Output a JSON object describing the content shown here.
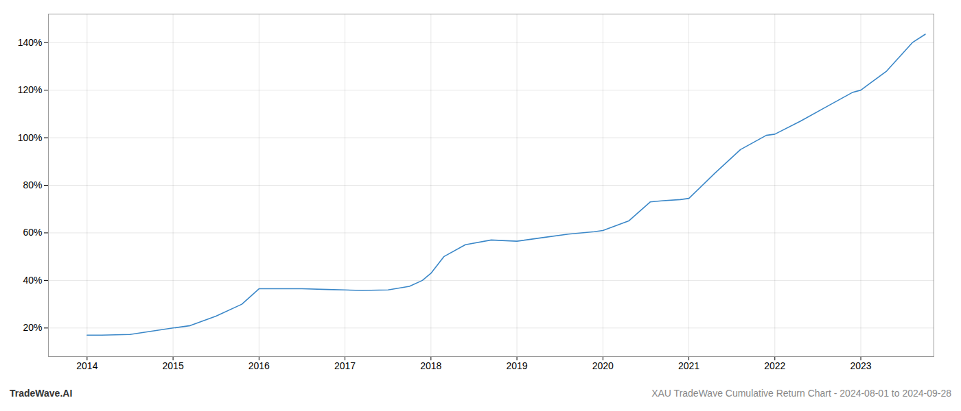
{
  "chart_data": {
    "type": "line",
    "x": [
      2014.0,
      2014.17,
      2014.5,
      2015.0,
      2015.2,
      2015.5,
      2015.8,
      2016.0,
      2016.3,
      2016.5,
      2016.8,
      2017.0,
      2017.2,
      2017.5,
      2017.75,
      2017.9,
      2018.0,
      2018.15,
      2018.4,
      2018.7,
      2019.0,
      2019.3,
      2019.6,
      2019.9,
      2020.0,
      2020.3,
      2020.55,
      2020.7,
      2020.9,
      2021.0,
      2021.3,
      2021.6,
      2021.9,
      2022.0,
      2022.3,
      2022.6,
      2022.9,
      2023.0,
      2023.3,
      2023.6,
      2023.75
    ],
    "values": [
      17.0,
      17.0,
      17.3,
      20.0,
      21.0,
      25.0,
      30.0,
      36.5,
      36.5,
      36.5,
      36.2,
      36.0,
      35.8,
      36.0,
      37.5,
      40.0,
      43.0,
      50.0,
      55.0,
      57.0,
      56.5,
      58.0,
      59.5,
      60.5,
      61.0,
      65.0,
      73.0,
      73.5,
      74.0,
      74.5,
      85.0,
      95.0,
      101.0,
      101.5,
      107.0,
      113.0,
      119.0,
      120.0,
      128.0,
      140.0,
      143.5
    ],
    "color": "#3a87c8",
    "xlim": [
      2013.55,
      2023.85
    ],
    "ylim": [
      8,
      152
    ],
    "xticks": [
      2014,
      2015,
      2016,
      2017,
      2018,
      2019,
      2020,
      2021,
      2022,
      2023
    ],
    "yticks": [
      {
        "value": 20,
        "label": "20%"
      },
      {
        "value": 40,
        "label": "40%"
      },
      {
        "value": 60,
        "label": "60%"
      },
      {
        "value": 80,
        "label": "80%"
      },
      {
        "value": 100,
        "label": "100%"
      },
      {
        "value": 120,
        "label": "120%"
      },
      {
        "value": 140,
        "label": "140%"
      }
    ],
    "grid": true,
    "annotations": [
      "TradeWave.AI",
      "XAU TradeWave Cumulative Return Chart - 2024-08-01 to 2024-09-28"
    ]
  }
}
